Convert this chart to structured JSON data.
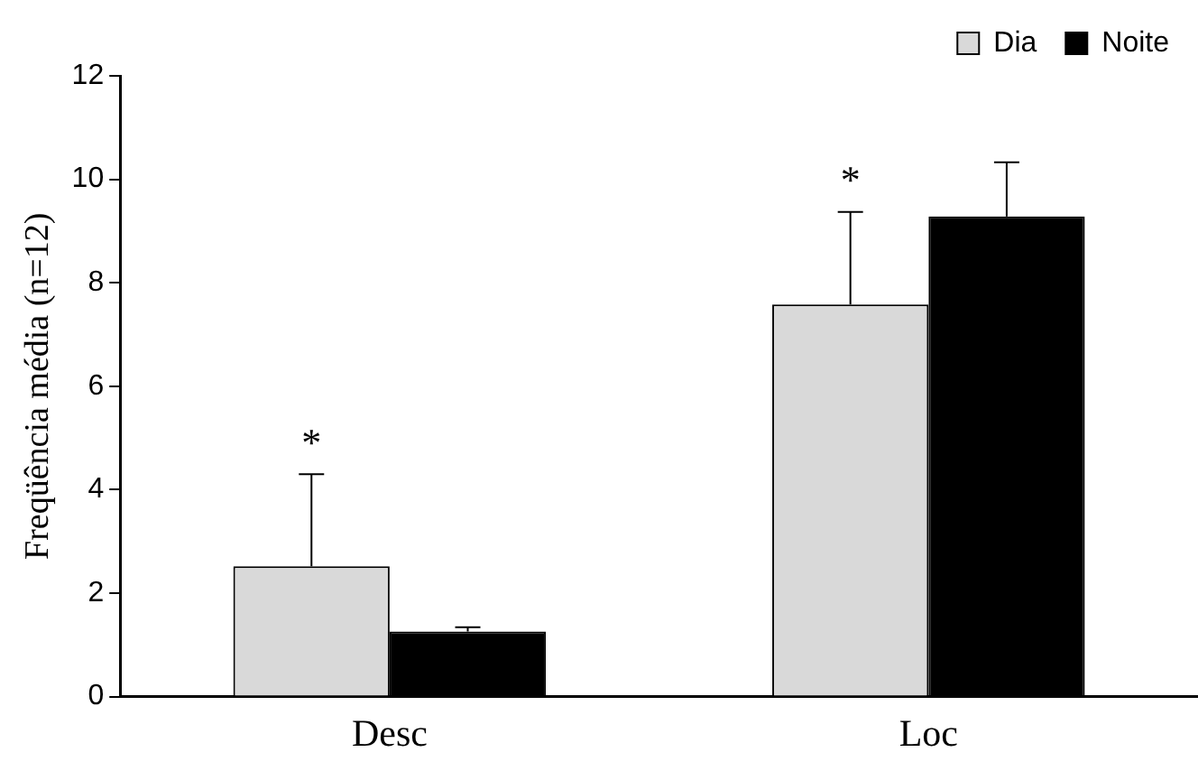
{
  "chart_data": {
    "type": "bar",
    "ylabel": "Freqüência média (n=12)",
    "categories": [
      "Desc",
      "Loc"
    ],
    "series": [
      {
        "name": "Dia",
        "color": "#d9d9d9",
        "values": [
          2.52,
          7.58
        ],
        "errors": [
          [
            2.52,
            4.3
          ],
          [
            7.58,
            9.37
          ]
        ]
      },
      {
        "name": "Noite",
        "color": "#000000",
        "values": [
          1.26,
          9.28
        ],
        "errors": [
          [
            1.26,
            1.34
          ],
          [
            9.28,
            10.33
          ]
        ]
      }
    ],
    "ylim": [
      0,
      12
    ],
    "yticks": [
      0,
      2,
      4,
      6,
      8,
      10,
      12
    ],
    "grid": false,
    "legend": "top right",
    "annotations": [
      "*",
      "*"
    ]
  }
}
